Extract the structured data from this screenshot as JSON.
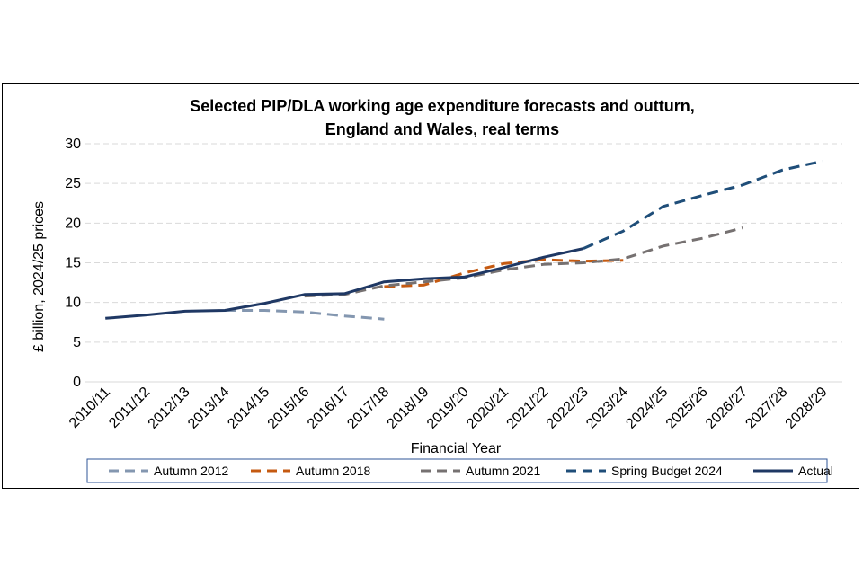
{
  "chart_data": {
    "type": "line",
    "title_line1": "Selected PIP/DLA working age expenditure forecasts and outturn,",
    "title_line2": "England and Wales, real terms",
    "xlabel": "Financial Year",
    "ylabel": "£ billion, 2024/25 prices",
    "ylim": [
      0,
      30
    ],
    "yticks": [
      "0",
      "5",
      "10",
      "15",
      "20",
      "25",
      "30"
    ],
    "grid": true,
    "legend_position": "bottom",
    "categories": [
      "2010/11",
      "2011/12",
      "2012/13",
      "2013/14",
      "2014/15",
      "2015/16",
      "2016/17",
      "2017/18",
      "2018/19",
      "2019/20",
      "2020/21",
      "2021/22",
      "2022/23",
      "2023/24",
      "2024/25",
      "2025/26",
      "2026/27",
      "2027/28",
      "2028/29"
    ],
    "series": [
      {
        "name": "Autumn 2012",
        "color": "#8497b0",
        "style": "dashed",
        "values": [
          null,
          null,
          null,
          9.0,
          9.0,
          8.8,
          8.3,
          7.9,
          null,
          null,
          null,
          null,
          null,
          null,
          null,
          null,
          null,
          null,
          null
        ]
      },
      {
        "name": "Autumn 2018",
        "color": "#c55a11",
        "style": "dashed",
        "values": [
          null,
          null,
          null,
          null,
          null,
          null,
          null,
          12.0,
          12.2,
          13.7,
          14.9,
          15.4,
          15.2,
          15.3,
          null,
          null,
          null,
          null,
          null
        ]
      },
      {
        "name": "Autumn 2021",
        "color": "#767171",
        "style": "dashed",
        "values": [
          null,
          null,
          null,
          null,
          null,
          10.8,
          11.0,
          12.1,
          12.6,
          13.1,
          14.1,
          14.8,
          15.0,
          15.5,
          17.1,
          18.1,
          19.4,
          null,
          null
        ]
      },
      {
        "name": "Spring Budget 2024",
        "color": "#1f4e79",
        "style": "dashed",
        "values": [
          null,
          null,
          null,
          null,
          null,
          null,
          null,
          null,
          null,
          null,
          null,
          null,
          16.8,
          19.0,
          22.1,
          23.5,
          24.8,
          26.7,
          27.8
        ]
      },
      {
        "name": "Actual",
        "color": "#1f3864",
        "style": "solid",
        "values": [
          8.0,
          8.4,
          8.9,
          9.0,
          9.9,
          11.0,
          11.1,
          12.6,
          13.0,
          13.2,
          14.4,
          15.7,
          16.8,
          null,
          null,
          null,
          null,
          null,
          null
        ]
      }
    ]
  }
}
